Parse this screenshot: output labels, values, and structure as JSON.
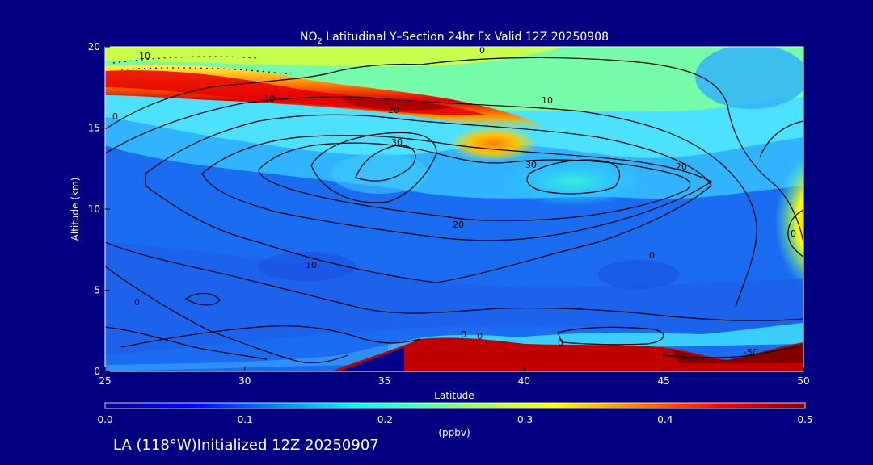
{
  "chart_data": {
    "type": "heatmap",
    "title_prefix": "NO",
    "title_sub": "2",
    "title_rest": " Latitudinal Y–Section 24hr  Fx Valid 12Z 20250908",
    "xlabel": "Latitude",
    "ylabel": "Altitude (km)",
    "xlim": [
      25,
      50
    ],
    "ylim": [
      0,
      20
    ],
    "x_ticks": [
      "25",
      "30",
      "35",
      "40",
      "45",
      "50"
    ],
    "y_ticks": [
      "0",
      "5",
      "10",
      "15",
      "20"
    ],
    "colorbar": {
      "range": [
        0.0,
        0.5
      ],
      "ticks": [
        "0.0",
        "0.1",
        "0.2",
        "0.3",
        "0.4",
        "0.5"
      ],
      "unit_label": "(ppbv)"
    },
    "contour_labels": [
      "0",
      "10",
      "0",
      "10",
      "20",
      "30",
      "10",
      "30",
      "20",
      "20",
      "0",
      "10",
      "0",
      "0",
      "0",
      "-50",
      "0",
      "0"
    ],
    "footer": "LA (118°W)Initialized 12Z 20250907"
  }
}
